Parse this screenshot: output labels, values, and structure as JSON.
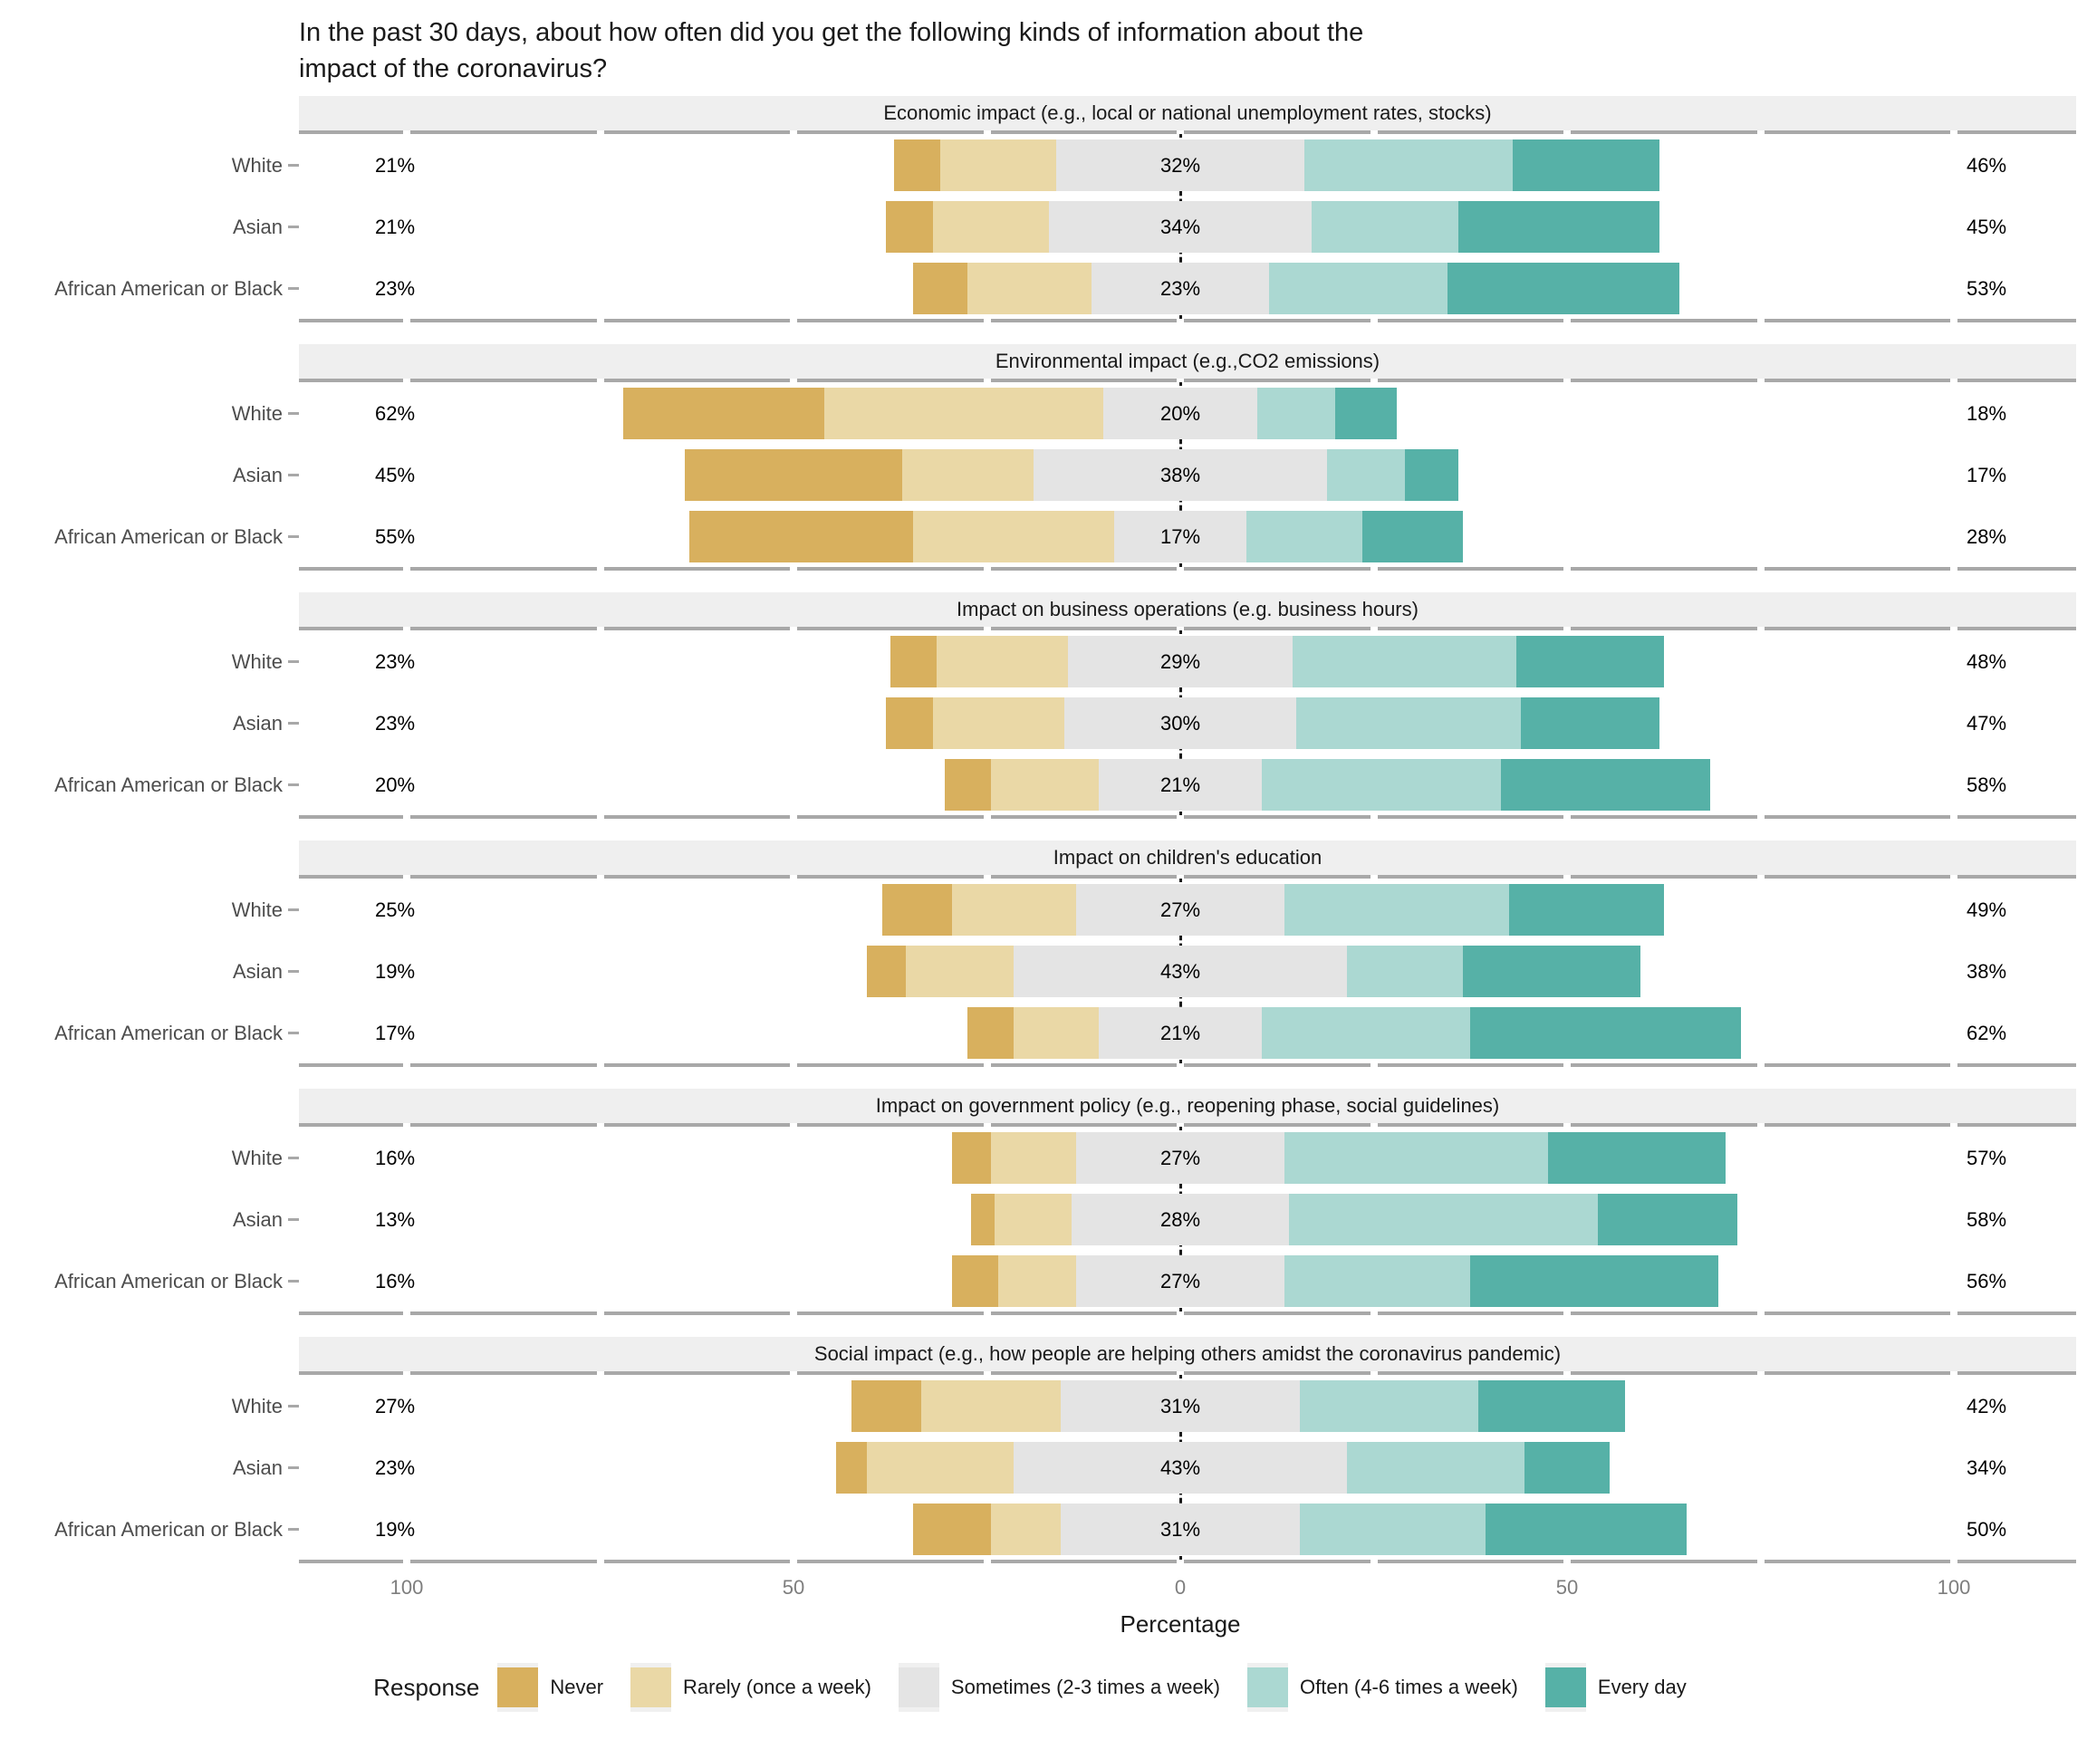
{
  "title_lines": [
    "In the past 30 days, about how often did you get the following kinds of information about the",
    "impact of the coronavirus?"
  ],
  "x_axis": {
    "label": "Percentage",
    "tick_labels": [
      "100",
      "50",
      "0",
      "50",
      "100"
    ],
    "tick_values": [
      -100,
      -50,
      0,
      50,
      100
    ]
  },
  "legend": {
    "title": "Response",
    "items": [
      {
        "label": "Never",
        "color": "#d8b05e"
      },
      {
        "label": "Rarely (once a week)",
        "color": "#ead8a6"
      },
      {
        "label": "Sometimes (2-3 times a week)",
        "color": "#e4e4e4"
      },
      {
        "label": "Often (4-6 times a week)",
        "color": "#abd8d2"
      },
      {
        "label": "Every day",
        "color": "#56b1a7"
      }
    ]
  },
  "colors": {
    "never": "#d8b05e",
    "rarely": "#ead8a6",
    "sometimes": "#e4e4e4",
    "often": "#abd8d2",
    "every_day": "#56b1a7",
    "facet_strip_bg": "#efefef",
    "axis_line": "#a8a8a8",
    "tick_text": "#7e7e7e",
    "y_label_text": "#4d4d4d"
  },
  "chart_data": {
    "type": "bar",
    "subtype": "diverging-stacked-likert",
    "response_levels": [
      "Never",
      "Rarely (once a week)",
      "Sometimes (2-3 times a week)",
      "Often (4-6 times a week)",
      "Every day"
    ],
    "groups": [
      "White",
      "Asian",
      "African American or Black"
    ],
    "xlabel": "Percentage",
    "xlim": [
      -115,
      116
    ],
    "note": "values are percentages; gray Sometimes segment is centered on 0; left label = Never+Rarely, mid label = Sometimes, right label = Often+Every day",
    "panels": [
      {
        "title": "Economic impact (e.g., local or national unemployment rates, stocks)",
        "rows": [
          {
            "group": "White",
            "values": [
              6,
              15,
              32,
              27,
              19
            ],
            "label_left": "21%",
            "label_mid": "32%",
            "label_right": "46%"
          },
          {
            "group": "Asian",
            "values": [
              6,
              15,
              34,
              19,
              26
            ],
            "label_left": "21%",
            "label_mid": "34%",
            "label_right": "45%"
          },
          {
            "group": "African American or Black",
            "values": [
              7,
              16,
              23,
              23,
              30
            ],
            "label_left": "23%",
            "label_mid": "23%",
            "label_right": "53%"
          }
        ]
      },
      {
        "title": "Environmental impact (e.g.,CO2 emissions)",
        "rows": [
          {
            "group": "White",
            "values": [
              26,
              36,
              20,
              10,
              8
            ],
            "label_left": "62%",
            "label_mid": "20%",
            "label_right": "18%"
          },
          {
            "group": "Asian",
            "values": [
              28,
              17,
              38,
              10,
              7
            ],
            "label_left": "45%",
            "label_mid": "38%",
            "label_right": "17%"
          },
          {
            "group": "African American or Black",
            "values": [
              29,
              26,
              17,
              15,
              13
            ],
            "label_left": "55%",
            "label_mid": "17%",
            "label_right": "28%"
          }
        ]
      },
      {
        "title": "Impact on business operations (e.g. business hours)",
        "rows": [
          {
            "group": "White",
            "values": [
              6,
              17,
              29,
              29,
              19
            ],
            "label_left": "23%",
            "label_mid": "29%",
            "label_right": "48%"
          },
          {
            "group": "Asian",
            "values": [
              6,
              17,
              30,
              29,
              18
            ],
            "label_left": "23%",
            "label_mid": "30%",
            "label_right": "47%"
          },
          {
            "group": "African American or Black",
            "values": [
              6,
              14,
              21,
              31,
              27
            ],
            "label_left": "20%",
            "label_mid": "21%",
            "label_right": "58%"
          }
        ]
      },
      {
        "title": "Impact on children's education",
        "rows": [
          {
            "group": "White",
            "values": [
              9,
              16,
              27,
              29,
              20
            ],
            "label_left": "25%",
            "label_mid": "27%",
            "label_right": "49%"
          },
          {
            "group": "Asian",
            "values": [
              5,
              14,
              43,
              15,
              23
            ],
            "label_left": "19%",
            "label_mid": "43%",
            "label_right": "38%"
          },
          {
            "group": "African American or Black",
            "values": [
              6,
              11,
              21,
              27,
              35
            ],
            "label_left": "17%",
            "label_mid": "21%",
            "label_right": "62%"
          }
        ]
      },
      {
        "title": "Impact on government policy (e.g., reopening phase, social guidelines)",
        "rows": [
          {
            "group": "White",
            "values": [
              5,
              11,
              27,
              34,
              23
            ],
            "label_left": "16%",
            "label_mid": "27%",
            "label_right": "57%"
          },
          {
            "group": "Asian",
            "values": [
              3,
              10,
              28,
              40,
              18
            ],
            "label_left": "13%",
            "label_mid": "28%",
            "label_right": "58%"
          },
          {
            "group": "African American or Black",
            "values": [
              6,
              10,
              27,
              24,
              32
            ],
            "label_left": "16%",
            "label_mid": "27%",
            "label_right": "56%"
          }
        ]
      },
      {
        "title": "Social impact (e.g., how people are helping others amidst the coronavirus pandemic)",
        "rows": [
          {
            "group": "White",
            "values": [
              9,
              18,
              31,
              23,
              19
            ],
            "label_left": "27%",
            "label_mid": "31%",
            "label_right": "42%"
          },
          {
            "group": "Asian",
            "values": [
              4,
              19,
              43,
              23,
              11
            ],
            "label_left": "23%",
            "label_mid": "43%",
            "label_right": "34%"
          },
          {
            "group": "African American or Black",
            "values": [
              10,
              9,
              31,
              24,
              26
            ],
            "label_left": "19%",
            "label_mid": "31%",
            "label_right": "50%"
          }
        ]
      }
    ]
  }
}
